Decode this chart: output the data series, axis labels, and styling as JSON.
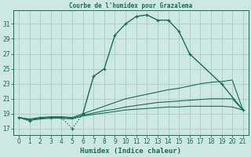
{
  "title": "Courbe de l'humidex pour Grazalema",
  "xlabel": "Humidex (Indice chaleur)",
  "bg_color": "#cce8e0",
  "grid_color": "#aaccC4",
  "line_color": "#1a6b5a",
  "xlim": [
    -0.5,
    21.5
  ],
  "ylim": [
    16.2,
    32.8
  ],
  "yticks": [
    17,
    19,
    21,
    23,
    25,
    27,
    29,
    31
  ],
  "xticks": [
    0,
    1,
    2,
    3,
    4,
    5,
    6,
    7,
    8,
    9,
    10,
    11,
    12,
    13,
    14,
    15,
    16,
    17,
    18,
    19,
    20,
    21
  ],
  "dotted_x": [
    0,
    1,
    2,
    3,
    4,
    5,
    6
  ],
  "dotted_y": [
    18.5,
    18.0,
    18.5,
    18.5,
    18.5,
    17.0,
    19.0
  ],
  "main_x": [
    6,
    7,
    8,
    9,
    10,
    11,
    12,
    13,
    14,
    15,
    16,
    19,
    21
  ],
  "main_y": [
    19.0,
    24.0,
    25.0,
    29.5,
    31.0,
    32.0,
    32.2,
    31.5,
    31.5,
    30.0,
    27.0,
    23.0,
    19.5
  ],
  "line2_x": [
    0,
    1,
    2,
    3,
    4,
    5,
    6,
    7,
    8,
    9,
    10,
    11,
    12,
    13,
    14,
    15,
    16,
    17,
    18,
    19,
    20,
    21
  ],
  "line2_y": [
    18.5,
    18.3,
    18.5,
    18.6,
    18.6,
    18.5,
    19.0,
    19.5,
    20.0,
    20.5,
    21.0,
    21.3,
    21.6,
    21.9,
    22.2,
    22.4,
    22.7,
    23.0,
    23.2,
    23.3,
    23.5,
    19.5
  ],
  "line3_x": [
    0,
    1,
    2,
    3,
    4,
    5,
    6,
    7,
    8,
    9,
    10,
    11,
    12,
    13,
    14,
    15,
    16,
    17,
    18,
    19,
    20,
    21
  ],
  "line3_y": [
    18.5,
    18.2,
    18.4,
    18.5,
    18.5,
    18.4,
    18.8,
    19.1,
    19.4,
    19.6,
    19.9,
    20.1,
    20.3,
    20.5,
    20.6,
    20.7,
    20.8,
    20.9,
    21.0,
    21.0,
    21.0,
    19.5
  ],
  "line4_x": [
    0,
    1,
    2,
    3,
    4,
    5,
    6,
    7,
    8,
    9,
    10,
    11,
    12,
    13,
    14,
    15,
    16,
    17,
    18,
    19,
    20,
    21
  ],
  "line4_y": [
    18.5,
    18.1,
    18.3,
    18.4,
    18.4,
    18.3,
    18.7,
    18.9,
    19.1,
    19.3,
    19.5,
    19.6,
    19.7,
    19.8,
    19.9,
    19.9,
    20.0,
    20.0,
    20.0,
    20.0,
    19.9,
    19.5
  ]
}
